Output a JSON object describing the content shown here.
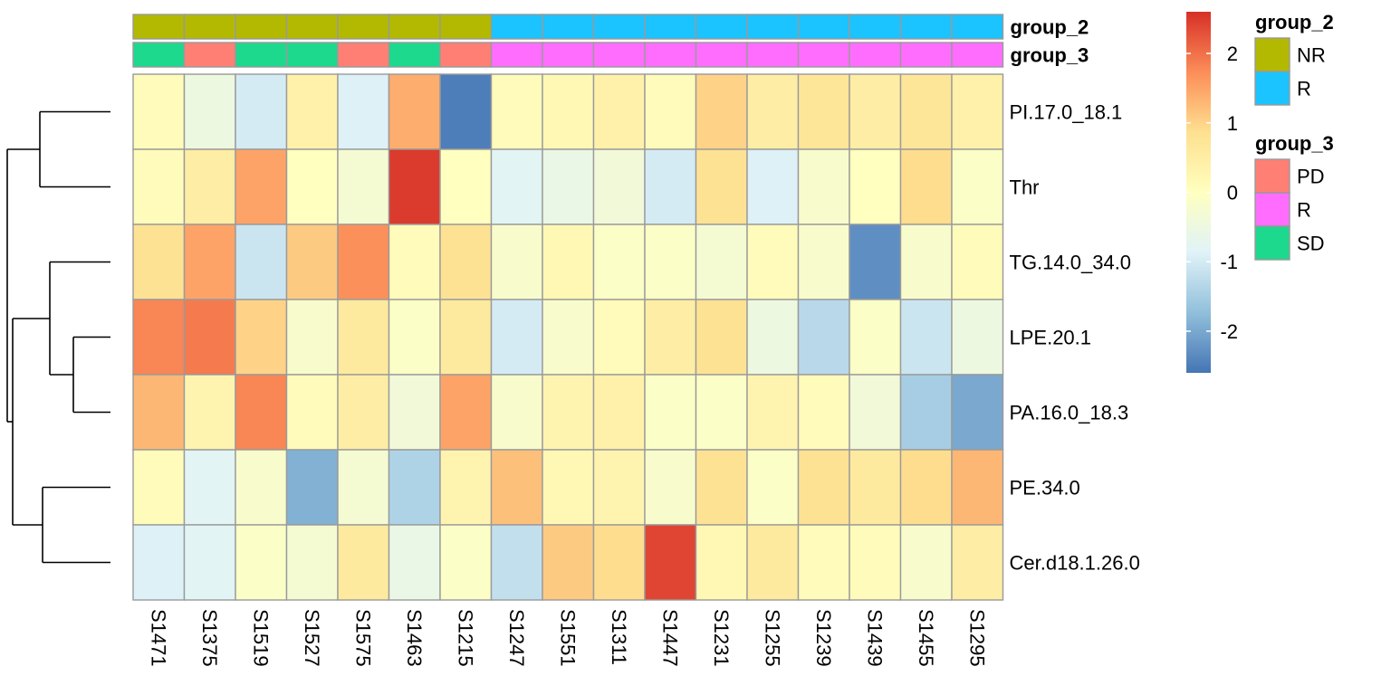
{
  "chart_data": {
    "type": "heatmap",
    "columns": [
      "S1471",
      "S1375",
      "S1519",
      "S1527",
      "S1575",
      "S1463",
      "S1215",
      "S1247",
      "S1551",
      "S1311",
      "S1447",
      "S1231",
      "S1255",
      "S1239",
      "S1439",
      "S1455",
      "S1295"
    ],
    "rows": [
      "PI.17.0_18.1",
      "Thr",
      "TG.14.0_34.0",
      "LPE.20.1",
      "PA.16.0_18.3",
      "PE.34.0",
      "Cer.d18.1.26.0"
    ],
    "values": [
      [
        0.1,
        -0.5,
        -1.0,
        0.4,
        -0.9,
        1.4,
        -2.5,
        0.1,
        0.2,
        0.4,
        0.1,
        1.0,
        0.5,
        0.7,
        0.5,
        0.7,
        0.4
      ],
      [
        0.1,
        0.5,
        1.5,
        0.0,
        -0.3,
        2.5,
        0.0,
        -0.8,
        -0.6,
        -0.4,
        -1.0,
        0.8,
        -0.9,
        -0.2,
        0.0,
        0.9,
        -0.1
      ],
      [
        0.8,
        1.5,
        -1.1,
        1.1,
        1.7,
        0.1,
        0.8,
        -0.2,
        0.2,
        -0.1,
        -0.1,
        -0.3,
        0.1,
        -0.2,
        -2.3,
        -0.2,
        0.1
      ],
      [
        1.8,
        1.9,
        1.0,
        -0.2,
        0.6,
        -0.1,
        0.6,
        -1.0,
        -0.2,
        0.1,
        0.5,
        0.8,
        -0.5,
        -1.3,
        -0.1,
        -1.1,
        -0.5
      ],
      [
        1.3,
        0.3,
        1.8,
        0.1,
        0.5,
        -0.4,
        1.5,
        -0.2,
        0.3,
        0.4,
        -0.1,
        -0.1,
        0.3,
        0.1,
        -0.4,
        -1.5,
        -2.0
      ],
      [
        0.1,
        -0.8,
        -0.2,
        -1.9,
        -0.3,
        -1.4,
        0.3,
        1.2,
        0.2,
        0.3,
        -0.2,
        0.8,
        -0.1,
        0.8,
        0.6,
        0.9,
        1.3
      ],
      [
        -0.9,
        -0.8,
        -0.1,
        -0.3,
        0.6,
        -0.6,
        -0.1,
        -1.2,
        1.1,
        0.9,
        2.4,
        0.2,
        0.6,
        0.1,
        0.1,
        -0.2,
        0.5
      ]
    ],
    "color_scale": {
      "min": -2.6,
      "max": 2.6,
      "ticks": [
        2,
        1,
        0,
        -1,
        -2
      ],
      "colors": [
        "#4575B4",
        "#91BFDB",
        "#E0F3F8",
        "#FFFFBF",
        "#FEE090",
        "#FC8D59",
        "#D73027"
      ]
    },
    "annotations": [
      {
        "name": "group_2",
        "values": [
          "NR",
          "NR",
          "NR",
          "NR",
          "NR",
          "NR",
          "NR",
          "R",
          "R",
          "R",
          "R",
          "R",
          "R",
          "R",
          "R",
          "R",
          "R"
        ],
        "legend": [
          {
            "label": "NR",
            "color": "#B2B900"
          },
          {
            "label": "R",
            "color": "#1BC3FF"
          }
        ]
      },
      {
        "name": "group_3",
        "values": [
          "SD",
          "PD",
          "SD",
          "SD",
          "PD",
          "SD",
          "PD",
          "R",
          "R",
          "R",
          "R",
          "R",
          "R",
          "R",
          "R",
          "R",
          "R"
        ],
        "legend": [
          {
            "label": "PD",
            "color": "#FF7F74"
          },
          {
            "label": "R",
            "color": "#FF6DFE"
          },
          {
            "label": "SD",
            "color": "#1DD98D"
          }
        ]
      }
    ],
    "row_dendrogram": true,
    "grid": true
  }
}
